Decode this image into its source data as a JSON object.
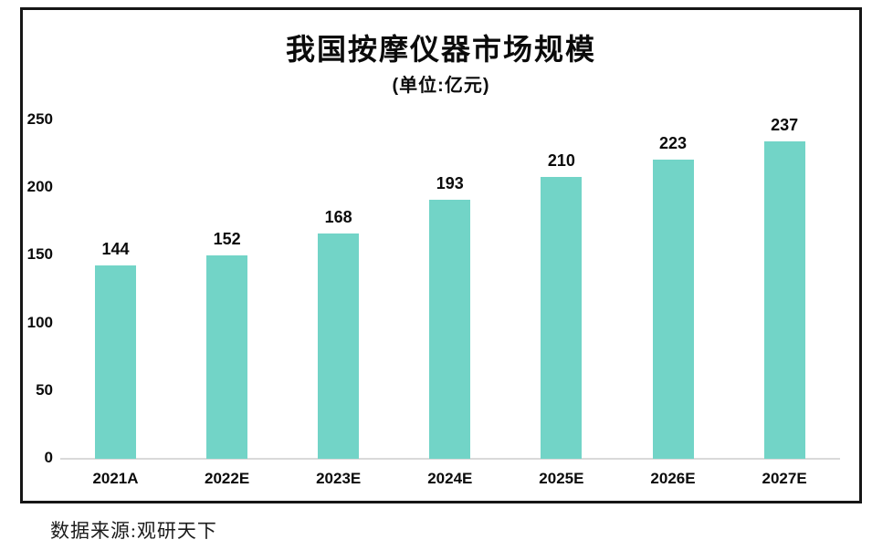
{
  "chart": {
    "title": "我国按摩仪器市场规模",
    "subtitle": "(单位:亿元)",
    "source": "数据来源:观研天下"
  },
  "chart_data": {
    "type": "bar",
    "title": "我国按摩仪器市场规模",
    "subtitle": "(单位:亿元)",
    "categories": [
      "2021A",
      "2022E",
      "2023E",
      "2024E",
      "2025E",
      "2026E",
      "2027E"
    ],
    "values": [
      144,
      152,
      168,
      193,
      210,
      223,
      237
    ],
    "xlabel": "",
    "ylabel": "",
    "y_ticks": [
      0,
      50,
      100,
      150,
      200,
      250
    ],
    "ylim": [
      0,
      250
    ],
    "grid": false,
    "legend": false,
    "bar_color": "#72d4c7",
    "baseline_color": "#d9d9d9",
    "text_color": "#0b0b0b",
    "source": "数据来源:观研天下"
  }
}
